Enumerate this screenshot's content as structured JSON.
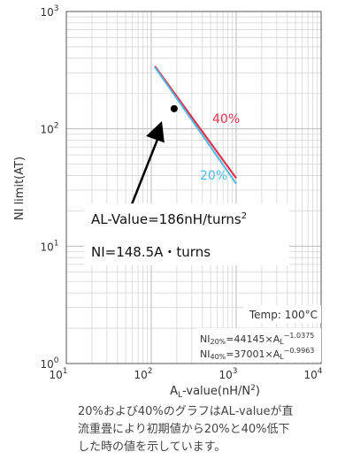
{
  "chart_data": {
    "type": "line",
    "xscale": "log",
    "yscale": "log",
    "xlim": [
      10,
      10000
    ],
    "ylim": [
      1,
      1000
    ],
    "xlabel": "AL-value(nH/N2)",
    "xlabel_parts": {
      "pre": "A",
      "sub": "L",
      "mid": "-value(nH/N",
      "sup": "2",
      "post": ")"
    },
    "ylabel": "NI limit(AT)",
    "x_tick_labels": [
      {
        "base": "10",
        "exp": "1",
        "value": 10
      },
      {
        "base": "10",
        "exp": "2",
        "value": 100
      },
      {
        "base": "10",
        "exp": "3",
        "value": 1000
      },
      {
        "base": "10",
        "exp": "4",
        "value": 10000
      }
    ],
    "y_tick_labels": [
      {
        "base": "10",
        "exp": "0",
        "value": 1
      },
      {
        "base": "10",
        "exp": "1",
        "value": 10
      },
      {
        "base": "10",
        "exp": "2",
        "value": 100
      },
      {
        "base": "10",
        "exp": "3",
        "value": 1000
      }
    ],
    "grid": true,
    "series": [
      {
        "name": "40%",
        "color": "#e0344a",
        "coef": 37001,
        "exponent": -0.9963,
        "x_range": [
          110,
          1000
        ]
      },
      {
        "name": "20%",
        "color": "#4fb9e8",
        "coef": 44145,
        "exponent": -1.0375,
        "x_range": [
          110,
          1000
        ]
      }
    ],
    "point": {
      "x": 186,
      "y": 148.5
    },
    "annotation": {
      "line1": "AL-Value=186nH/turns",
      "line1_sup": "2",
      "line2": "NI=148.5A・turns"
    },
    "temp_label": "Temp: 100°C",
    "formulas": {
      "f20": {
        "pre": "NI",
        "sub": "20%",
        "mid": "=44145×A",
        "sub2": "L",
        "sup": "−1.0375"
      },
      "f40": {
        "pre": "NI",
        "sub": "40%",
        "mid": "=37001×A",
        "sub2": "L",
        "sup": "−0.9963"
      }
    }
  },
  "caption": {
    "lines": [
      "20%および40%のグラフはAL-valueが直",
      "流重畳により初期値から20%と40%低下",
      "した時の値を示しています。"
    ]
  }
}
